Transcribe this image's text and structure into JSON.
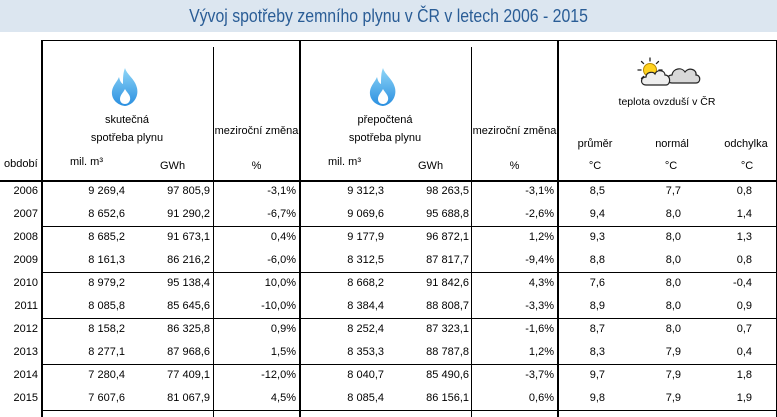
{
  "title": "Vývoj spotřeby zemního plynu v ČR v letech 2006 - 2015",
  "header": {
    "period_label": "období",
    "actual": {
      "line1": "skutečná",
      "line2": "spotřeba plynu",
      "unit_volume": "mil. m³",
      "unit_energy": "GWh",
      "change_label": "meziroční změna",
      "change_unit": "%"
    },
    "converted": {
      "line1": "přepočtená",
      "line2": "spotřeba plynu",
      "unit_volume": "mil. m³",
      "unit_energy": "GWh",
      "change_label": "meziroční změna",
      "change_unit": "%"
    },
    "temperature": {
      "label": "teplota ovzduší v ČR",
      "average": "průměr",
      "normal": "normál",
      "deviation": "odchylka",
      "unit": "°C"
    }
  },
  "icons": {
    "actual": "flame-icon",
    "converted": "flame-icon",
    "temperature": "sun-behind-clouds-icon"
  },
  "colors": {
    "title_band": "#dce6f0",
    "title_text": "#2a5d96",
    "flame_light": "#8fd6f7",
    "flame_dark": "#2a8fe0"
  },
  "rows": [
    {
      "year": "2006",
      "actual_volume": "9 269,4",
      "actual_energy": "97 805,9",
      "actual_change": "-3,1%",
      "converted_volume": "9 312,3",
      "converted_energy": "98 263,5",
      "converted_change": "-3,1%",
      "temp_average": "8,5",
      "temp_normal": "7,7",
      "temp_deviation": "0,8"
    },
    {
      "year": "2007",
      "actual_volume": "8 652,6",
      "actual_energy": "91 290,2",
      "actual_change": "-6,7%",
      "converted_volume": "9 069,6",
      "converted_energy": "95 688,8",
      "converted_change": "-2,6%",
      "temp_average": "9,4",
      "temp_normal": "8,0",
      "temp_deviation": "1,4"
    },
    {
      "year": "2008",
      "actual_volume": "8 685,2",
      "actual_energy": "91 673,1",
      "actual_change": "0,4%",
      "converted_volume": "9 177,9",
      "converted_energy": "96 872,1",
      "converted_change": "1,2%",
      "temp_average": "9,3",
      "temp_normal": "8,0",
      "temp_deviation": "1,3"
    },
    {
      "year": "2009",
      "actual_volume": "8 161,3",
      "actual_energy": "86 216,2",
      "actual_change": "-6,0%",
      "converted_volume": "8 312,5",
      "converted_energy": "87 817,7",
      "converted_change": "-9,4%",
      "temp_average": "8,8",
      "temp_normal": "8,0",
      "temp_deviation": "0,8"
    },
    {
      "year": "2010",
      "actual_volume": "8 979,2",
      "actual_energy": "95 138,4",
      "actual_change": "10,0%",
      "converted_volume": "8 668,2",
      "converted_energy": "91 842,6",
      "converted_change": "4,3%",
      "temp_average": "7,6",
      "temp_normal": "8,0",
      "temp_deviation": "-0,4"
    },
    {
      "year": "2011",
      "actual_volume": "8 085,8",
      "actual_energy": "85 645,6",
      "actual_change": "-10,0%",
      "converted_volume": "8 384,4",
      "converted_energy": "88 808,7",
      "converted_change": "-3,3%",
      "temp_average": "8,9",
      "temp_normal": "8,0",
      "temp_deviation": "0,9"
    },
    {
      "year": "2012",
      "actual_volume": "8 158,2",
      "actual_energy": "86 325,8",
      "actual_change": "0,9%",
      "converted_volume": "8 252,4",
      "converted_energy": "87 323,1",
      "converted_change": "-1,6%",
      "temp_average": "8,7",
      "temp_normal": "8,0",
      "temp_deviation": "0,7"
    },
    {
      "year": "2013",
      "actual_volume": "8 277,1",
      "actual_energy": "87 968,6",
      "actual_change": "1,5%",
      "converted_volume": "8 353,3",
      "converted_energy": "88 787,8",
      "converted_change": "1,2%",
      "temp_average": "8,3",
      "temp_normal": "7,9",
      "temp_deviation": "0,4"
    },
    {
      "year": "2014",
      "actual_volume": "7 280,4",
      "actual_energy": "77 409,1",
      "actual_change": "-12,0%",
      "converted_volume": "8 040,7",
      "converted_energy": "85 490,6",
      "converted_change": "-3,7%",
      "temp_average": "9,7",
      "temp_normal": "7,9",
      "temp_deviation": "1,8"
    },
    {
      "year": "2015",
      "actual_volume": "7 607,6",
      "actual_energy": "81 067,9",
      "actual_change": "4,5%",
      "converted_volume": "8 085,4",
      "converted_energy": "86 156,1",
      "converted_change": "0,6%",
      "temp_average": "9,8",
      "temp_normal": "7,9",
      "temp_deviation": "1,9"
    }
  ]
}
